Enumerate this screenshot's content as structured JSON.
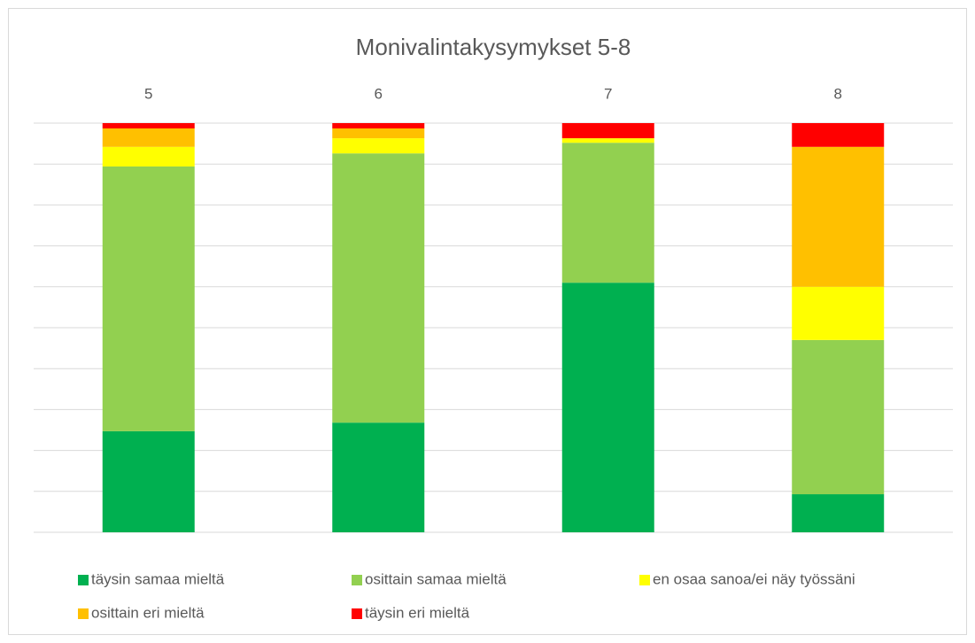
{
  "chart_data": {
    "type": "stacked_bar_100",
    "title": "Monivalintakysymykset 5-8",
    "categories": [
      "5",
      "6",
      "7",
      "8"
    ],
    "series": [
      {
        "name": "täysin samaa mieltä",
        "color": "#00b050",
        "values": [
          24.7,
          26.8,
          61.0,
          9.3
        ]
      },
      {
        "name": "osittain samaa mieltä",
        "color": "#92d050",
        "values": [
          64.7,
          65.8,
          34.2,
          37.7
        ]
      },
      {
        "name": "en osaa sanoa/ei näy työssäni",
        "color": "#ffff00",
        "values": [
          4.8,
          3.7,
          1.1,
          13.0
        ]
      },
      {
        "name": "osittain eri mieltä",
        "color": "#ffc000",
        "values": [
          4.5,
          2.4,
          0,
          34.2
        ]
      },
      {
        "name": "täysin eri mieltä",
        "color": "#ff0000",
        "values": [
          1.3,
          1.3,
          3.7,
          5.8
        ]
      }
    ],
    "ylim": [
      0,
      100
    ],
    "yticks": [
      0,
      10,
      20,
      30,
      40,
      50,
      60,
      70,
      80,
      90,
      100
    ],
    "grid": true,
    "legend": "bottom"
  }
}
